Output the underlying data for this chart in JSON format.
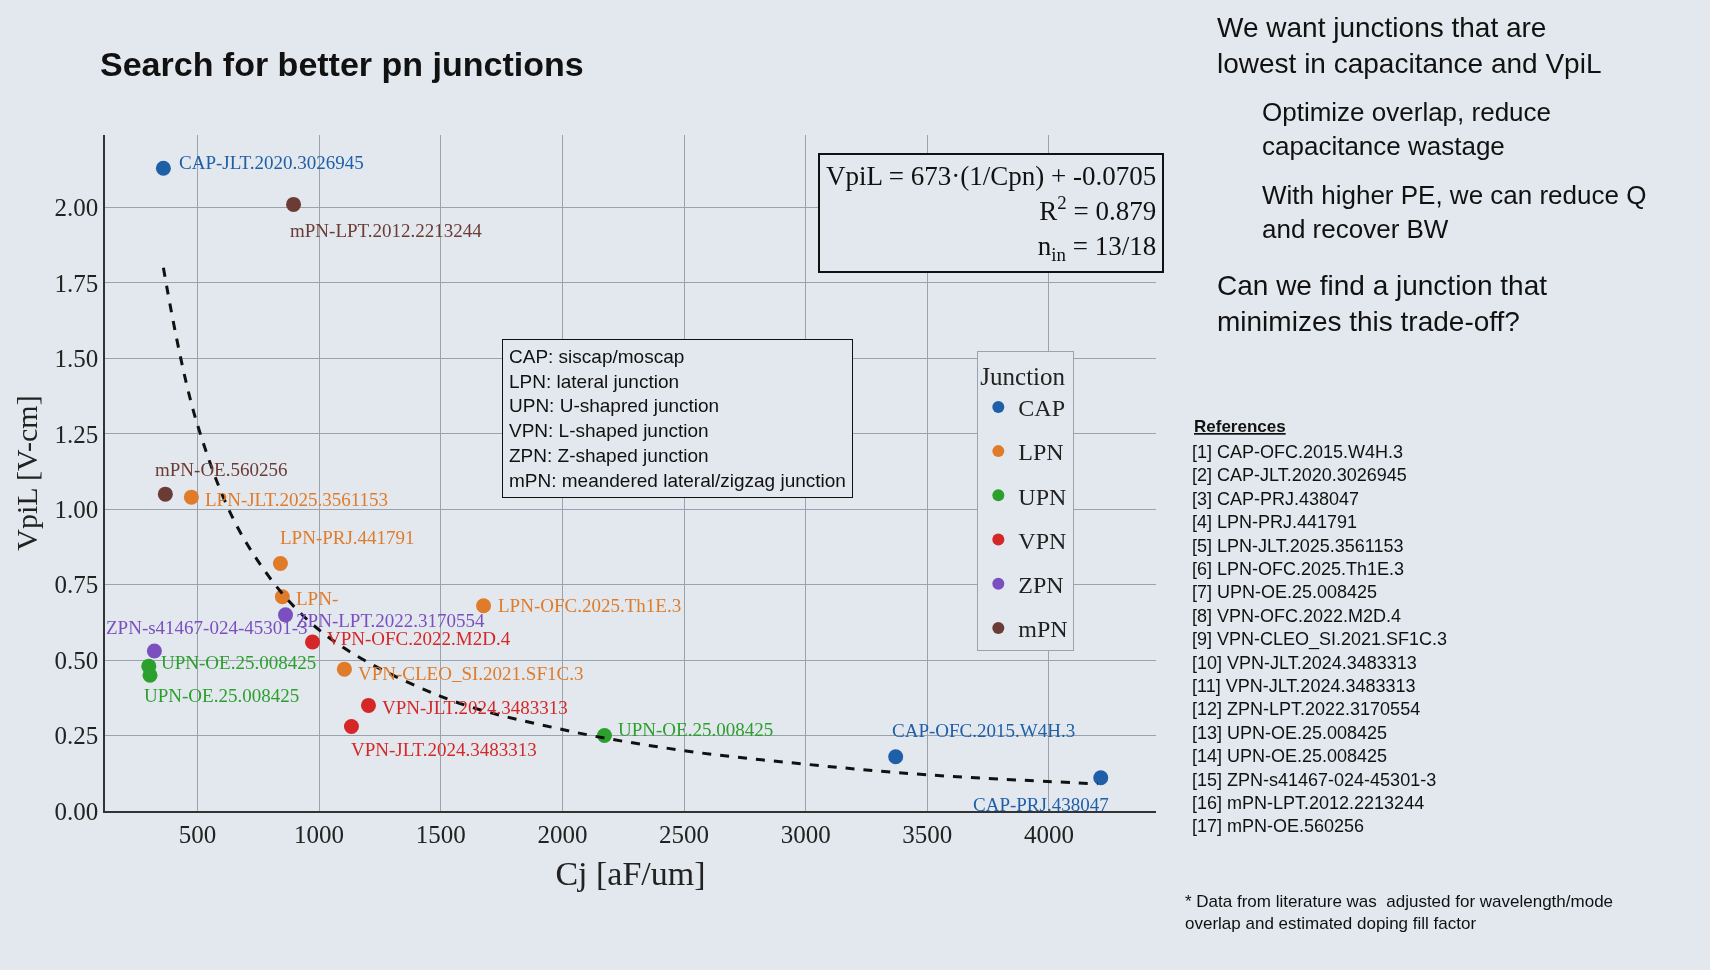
{
  "chart_data": {
    "type": "scatter",
    "title": "Search for better pn junctions",
    "xlabel": "Cj [aF/um]",
    "ylabel": "VpiL [V-cm]",
    "legend_title": "Junction",
    "xlim": [
      120,
      4440
    ],
    "ylim": [
      0,
      2.24
    ],
    "xticks": [
      500,
      1000,
      1500,
      2000,
      2500,
      3000,
      3500,
      4000
    ],
    "yticks": [
      {
        "value": 0,
        "label": "0.00"
      },
      {
        "value": 0.25,
        "label": "0.25"
      },
      {
        "value": 0.5,
        "label": "0.50"
      },
      {
        "value": 0.75,
        "label": "0.75"
      },
      {
        "value": 1,
        "label": "1.00"
      },
      {
        "value": 1.25,
        "label": "1.25"
      },
      {
        "value": 1.5,
        "label": "1.50"
      },
      {
        "value": 1.75,
        "label": "1.75"
      },
      {
        "value": 2,
        "label": "2.00"
      }
    ],
    "grid": true,
    "legend": "right",
    "marker": "circle",
    "series": [
      {
        "name": "CAP",
        "color": "#1f5fa8",
        "x": [
          360,
          3370,
          4213
        ],
        "values": [
          2.13,
          0.18,
          0.11
        ]
      },
      {
        "name": "LPN",
        "color": "#e07b2a",
        "x": [
          475,
          841,
          849,
          1676
        ],
        "values": [
          1.04,
          0.82,
          0.71,
          0.68
        ]
      },
      {
        "name": "UPN",
        "color": "#2ca02c",
        "x": [
          300,
          305,
          2173
        ],
        "values": [
          0.48,
          0.45,
          0.25
        ]
      },
      {
        "name": "VPN",
        "color": "#d62728",
        "colors": [
          "#d62728",
          "#e07b2a",
          "#d62728",
          "#d62728"
        ],
        "x": [
          973,
          1104,
          1203,
          1133
        ],
        "values": [
          0.56,
          0.47,
          0.35,
          0.28
        ]
      },
      {
        "name": "ZPN",
        "color": "#7b4fbf",
        "x": [
          862,
          323
        ],
        "values": [
          0.65,
          0.53
        ]
      },
      {
        "name": "mPN",
        "color": "#6b3b35",
        "x": [
          895,
          368
        ],
        "values": [
          2.01,
          1.05
        ]
      },
      {
        "type": "line",
        "color": "#111111",
        "line_style": "dashed",
        "marker": "none",
        "x": [
          360,
          500,
          700,
          1000,
          1500,
          2000,
          2500,
          3000,
          3500,
          4200
        ],
        "values": [
          1.8,
          1.28,
          0.89,
          0.6,
          0.38,
          0.27,
          0.2,
          0.155,
          0.12,
          0.09
        ]
      }
    ],
    "annotations": [
      {
        "text": "CAP-JLT.2020.3026945",
        "x": 360,
        "y": 2.13
      },
      {
        "text": "mPN-LPT.2012.2213244",
        "x": 895,
        "y": 2.01
      },
      {
        "text": "mPN-OE.560256",
        "x": 368,
        "y": 1.05
      },
      {
        "text": "LPN-JLT.2025.3561153",
        "x": 475,
        "y": 1.04
      },
      {
        "text": "LPN-PRJ.441791",
        "x": 841,
        "y": 0.82
      },
      {
        "text": "LPN-",
        "x": 849,
        "y": 0.71
      },
      {
        "text": "ZPN-LPT.2022.3170554",
        "x": 862,
        "y": 0.65
      },
      {
        "text": "ZPN-s41467-024-45301-3",
        "x": 323,
        "y": 0.53
      },
      {
        "text": "VPN-OFC.2022.M2D.4",
        "x": 973,
        "y": 0.56
      },
      {
        "text": "UPN-OE.25.008425",
        "x": 300,
        "y": 0.48
      },
      {
        "text": "UPN-OE.25.008425",
        "x": 305,
        "y": 0.45
      },
      {
        "text": "VPN-CLEO_SI.2021.SF1C.3",
        "x": 1104,
        "y": 0.47
      },
      {
        "text": "LPN-OFC.2025.Th1E.3",
        "x": 1676,
        "y": 0.68
      },
      {
        "text": "VPN-JLT.2024.3483313",
        "x": 1203,
        "y": 0.35
      },
      {
        "text": "VPN-JLT.2024.3483313",
        "x": 1133,
        "y": 0.28
      },
      {
        "text": "UPN-OE.25.008425",
        "x": 2173,
        "y": 0.25
      },
      {
        "text": "CAP-OFC.2015.W4H.3",
        "x": 3370,
        "y": 0.18
      },
      {
        "text": "CAP-PRJ.438047",
        "x": 4213,
        "y": 0.11
      },
      "VpiL = 673·(1/Cpn) + -0.0705\nR$^{2}$ = 0.879\nn$_{in}$ = 13/18",
      "CAP: siscap/moscap\nLPN: lateral junction\nUPN: U-shapred junction\nVPN: L-shaped junction\nZPN: Z-shaped junction\nmPN: meandered lateral/zigzag junction",
      "We want junctions that are\nlowest in capacitance and VpiL",
      "Optimize overlap, reduce\ncapacitance wastage",
      "With higher PE, we can reduce Q\nand recover BW",
      "Can we find a junction that\nminimizes this trade-off?",
      "References",
      "[1] CAP-OFC.2015.W4H.3\n[2] CAP-JLT.2020.3026945\n[3] CAP-PRJ.438047\n[4] LPN-PRJ.441791\n[5] LPN-JLT.2025.3561153\n[6] LPN-OFC.2025.Th1E.3\n[7] UPN-OE.25.008425\n[8] VPN-OFC.2022.M2D.4\n[9] VPN-CLEO_SI.2021.SF1C.3\n[10] VPN-JLT.2024.3483313\n[11] VPN-JLT.2024.3483313\n[12] ZPN-LPT.2022.3170554\n[13] UPN-OE.25.008425\n[14] UPN-OE.25.008425\n[15] ZPN-s41467-024-45301-3\n[16] mPN-LPT.2012.2213244\n[17] mPN-OE.560256",
      "* Data from literature was  adjusted for wavelength/mode\noverlap and estimated doping fill factor"
    ]
  }
}
